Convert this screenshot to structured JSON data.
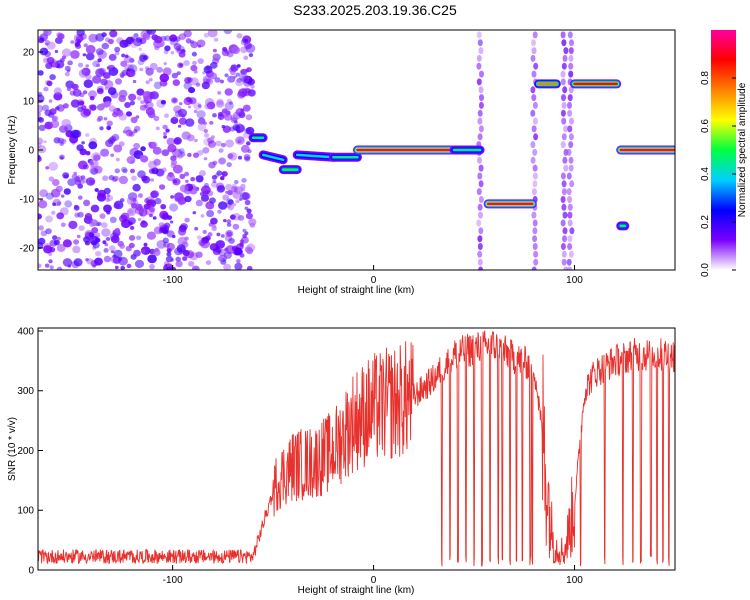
{
  "chart_data": [
    {
      "type": "heatmap",
      "title": "S233.2025.203.19.36.C25",
      "xlabel": "Height of straight line (km)",
      "ylabel": "Frequency (Hz)",
      "xlim": [
        -167,
        150
      ],
      "ylim": [
        -24.5,
        24.5
      ],
      "xticks": [
        -100,
        0,
        100
      ],
      "yticks": [
        -20,
        -10,
        0,
        10,
        20
      ],
      "colorbar": {
        "label": "Normalized spectral amplitude",
        "range": [
          0,
          1
        ],
        "ticks": [
          0,
          0.2,
          0.4,
          0.6,
          0.8
        ],
        "colormap": [
          "#ffffff",
          "#7a00ff",
          "#0000ff",
          "#00d0ff",
          "#00ff40",
          "#ffff00",
          "#ff8000",
          "#ff0000",
          "#ff00a0"
        ]
      },
      "noise_region_x": [
        -167,
        -60
      ],
      "segments": [
        {
          "x": [
            -60,
            -55
          ],
          "y": [
            2.5,
            2.5
          ],
          "amplitude": 0.45
        },
        {
          "x": [
            -55,
            -45
          ],
          "y": [
            -1,
            -2
          ],
          "amplitude": 0.4
        },
        {
          "x": [
            -45,
            -38
          ],
          "y": [
            -4,
            -4
          ],
          "amplitude": 0.5
        },
        {
          "x": [
            -38,
            -20
          ],
          "y": [
            -1,
            -1.5
          ],
          "amplitude": 0.4
        },
        {
          "x": [
            -20,
            -8
          ],
          "y": [
            -1.5,
            -1.5
          ],
          "amplitude": 0.45
        },
        {
          "x": [
            -8,
            40
          ],
          "y": [
            0,
            0
          ],
          "amplitude": 0.95
        },
        {
          "x": [
            40,
            53
          ],
          "y": [
            0,
            0
          ],
          "amplitude": 0.45
        },
        {
          "x": [
            57,
            79
          ],
          "y": [
            -11,
            -11
          ],
          "amplitude": 0.95
        },
        {
          "x": [
            82,
            91
          ],
          "y": [
            13.5,
            13.5
          ],
          "amplitude": 0.75
        },
        {
          "x": [
            100,
            121
          ],
          "y": [
            13.5,
            13.5
          ],
          "amplitude": 0.9
        },
        {
          "x": [
            123,
            150
          ],
          "y": [
            0,
            0
          ],
          "amplitude": 0.95
        },
        {
          "x": [
            123,
            125
          ],
          "y": [
            -15.5,
            -15.5
          ],
          "amplitude": 0.5
        }
      ],
      "vertical_streaks_x": [
        53,
        80,
        95,
        98
      ]
    },
    {
      "type": "line",
      "title": "",
      "xlabel": "Height of straight line (km)",
      "ylabel": "SNR (10 * v/v)",
      "xlim": [
        -167,
        150
      ],
      "ylim": [
        0,
        405
      ],
      "xticks": [
        -100,
        0,
        100
      ],
      "yticks": [
        0,
        100,
        200,
        300,
        400
      ],
      "series_color": "#e8302c",
      "envelope": {
        "x": [
          -167,
          -60,
          -48,
          -40,
          -30,
          -20,
          -10,
          0,
          10,
          20,
          30,
          40,
          50,
          60,
          70,
          80,
          85,
          88,
          90,
          95,
          100,
          105,
          110,
          120,
          130,
          140,
          150
        ],
        "y": [
          20,
          20,
          150,
          175,
          180,
          200,
          250,
          270,
          280,
          290,
          320,
          360,
          370,
          375,
          355,
          340,
          200,
          80,
          40,
          30,
          110,
          300,
          330,
          350,
          360,
          360,
          360
        ]
      },
      "dropouts_x": [
        34,
        38,
        42,
        46,
        50,
        54,
        58,
        62,
        64,
        68,
        71,
        74,
        78,
        79,
        103,
        115,
        124,
        129,
        133,
        138,
        141,
        144,
        147
      ]
    }
  ]
}
